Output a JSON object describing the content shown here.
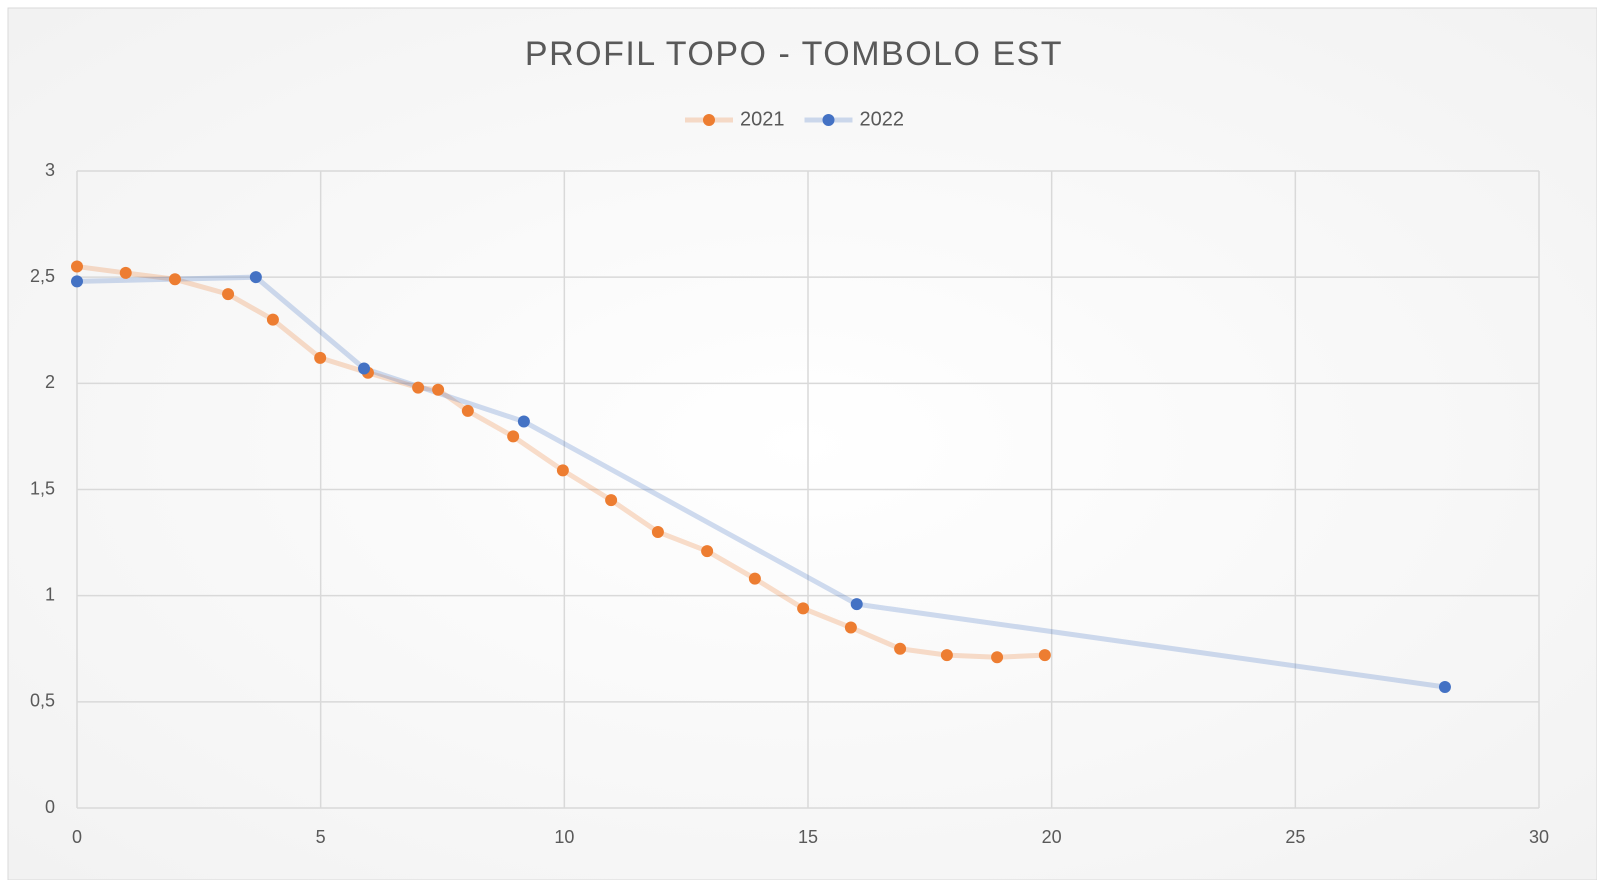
{
  "chart_data": {
    "type": "scatter-line",
    "title": "PROFIL TOPO - TOMBOLO EST",
    "series": [
      {
        "name": "2021",
        "color": "#ed7d31",
        "x": [
          0,
          1.0,
          2.01,
          3.1,
          4.02,
          4.99,
          5.97,
          7.0,
          7.41,
          8.02,
          8.95,
          9.97,
          10.96,
          11.92,
          12.93,
          13.91,
          14.9,
          15.88,
          16.89,
          17.85,
          18.88,
          19.86
        ],
        "values": [
          2.55,
          2.52,
          2.49,
          2.42,
          2.3,
          2.12,
          2.05,
          1.98,
          1.97,
          1.87,
          1.75,
          1.59,
          1.45,
          1.3,
          1.21,
          1.08,
          0.94,
          0.85,
          0.75,
          0.72,
          0.71,
          0.72
        ]
      },
      {
        "name": "2022",
        "color": "#4472c4",
        "x": [
          0,
          3.67,
          5.89,
          9.17,
          16.0,
          28.07
        ],
        "values": [
          2.48,
          2.5,
          2.07,
          1.82,
          0.96,
          0.57
        ]
      }
    ],
    "xlim": [
      0,
      30
    ],
    "xticks": [
      0,
      5,
      10,
      15,
      20,
      25,
      30
    ],
    "ylim": [
      0,
      3
    ],
    "yticks": [
      0,
      {
        "value": 0.5,
        "label": "0,5"
      },
      1,
      {
        "value": 1.5,
        "label": "1,5"
      },
      2,
      {
        "value": 2.5,
        "label": "2,5"
      },
      3
    ],
    "grid": true,
    "legend": "top"
  }
}
